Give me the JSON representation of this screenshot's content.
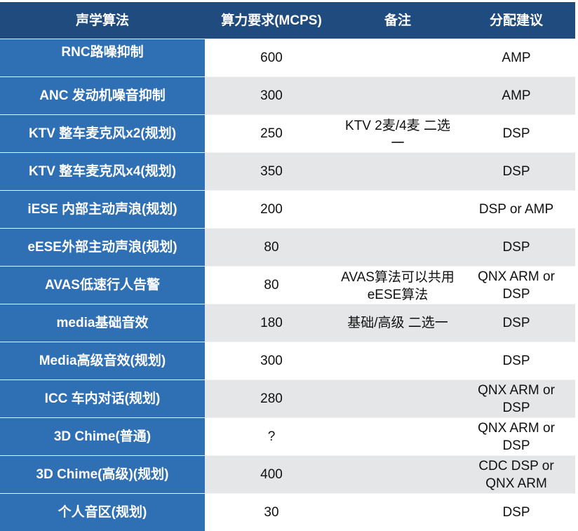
{
  "header": [
    "声学算法",
    "算力要求(MCPS)",
    "备注",
    "分配建议"
  ],
  "rows": [
    {
      "algo": "RNC路噪抑制",
      "mcps": "600",
      "note": "",
      "alloc": "AMP"
    },
    {
      "algo": "ANC 发动机噪音抑制",
      "mcps": "300",
      "note": "",
      "alloc": "AMP"
    },
    {
      "algo": "KTV 整车麦克风x2(规划)",
      "mcps": "250",
      "note": "KTV 2麦/4麦 二选一",
      "alloc": "DSP"
    },
    {
      "algo": "KTV 整车麦克风x4(规划)",
      "mcps": "350",
      "note": "",
      "alloc": "DSP"
    },
    {
      "algo": "iESE 内部主动声浪(规划)",
      "mcps": "200",
      "note": "",
      "alloc": "DSP or AMP"
    },
    {
      "algo": "eESE外部主动声浪(规划)",
      "mcps": "80",
      "note": "",
      "alloc": "DSP"
    },
    {
      "algo": "AVAS低速行人告警",
      "mcps": "80",
      "note": "AVAS算法可以共用eESE算法",
      "alloc": "QNX ARM or DSP"
    },
    {
      "algo": "media基础音效",
      "mcps": "180",
      "note": "基础/高级 二选一",
      "alloc": "DSP"
    },
    {
      "algo": "Media高级音效(规划)",
      "mcps": "300",
      "note": "",
      "alloc": "DSP"
    },
    {
      "algo": "ICC 车内对话(规划)",
      "mcps": "280",
      "note": "",
      "alloc": "QNX ARM or DSP"
    },
    {
      "algo": "3D Chime(普通)",
      "mcps": "?",
      "note": "",
      "alloc": "QNX ARM or DSP"
    },
    {
      "algo": "3D Chime(高级)(规划)",
      "mcps": "400",
      "note": "",
      "alloc": "CDC DSP or QNX ARM"
    },
    {
      "algo": "个人音区(规划)",
      "mcps": "30",
      "note": "",
      "alloc": "DSP"
    }
  ],
  "colors": {
    "header": "#1f4b7e",
    "first_column": "#2f6fb4",
    "stripe": "#e5e6e8"
  }
}
